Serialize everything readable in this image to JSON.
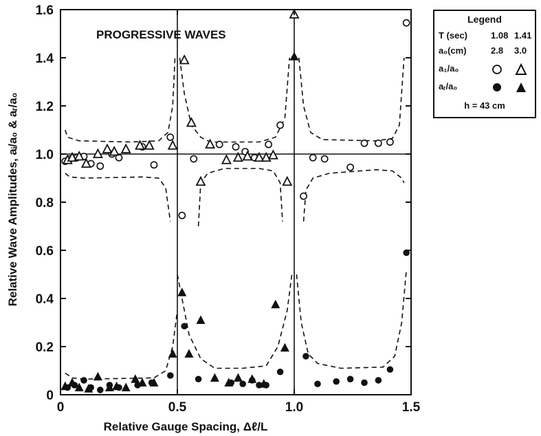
{
  "chart_data": {
    "type": "scatter",
    "annotation": "PROGRESSIVE WAVES",
    "xlabel": "Relative Gauge Spacing, Δℓ/L",
    "ylabel": "Relative Wave Amplitudes,  aᵢ/a₀  &  aᵣ/a₀",
    "xlim": [
      0,
      1.5
    ],
    "ylim": [
      0,
      1.6
    ],
    "x_ticks": [
      0,
      0.5,
      1.0,
      1.5
    ],
    "x_tick_labels": [
      "0",
      "0.5",
      "1.0",
      "1.5"
    ],
    "y_ticks": [
      0,
      0.2,
      0.4,
      0.6,
      0.8,
      1.0,
      1.2,
      1.4,
      1.6
    ],
    "y_tick_labels": [
      "0",
      "0.2",
      "0.4",
      "0.6",
      "0.8",
      "1.0",
      "1.2",
      "1.4",
      "1.6"
    ],
    "reference_lines": {
      "horizontal": [
        1.0
      ],
      "vertical": [
        0.5,
        1.0
      ]
    },
    "series": [
      {
        "name": "aI/a0, T=1.08 s",
        "marker": "open-circle",
        "points": [
          [
            0.02,
            0.97
          ],
          [
            0.04,
            0.98
          ],
          [
            0.07,
            0.985
          ],
          [
            0.1,
            0.99
          ],
          [
            0.13,
            0.96
          ],
          [
            0.17,
            0.95
          ],
          [
            0.22,
            1.0
          ],
          [
            0.25,
            0.985
          ],
          [
            0.35,
            1.03
          ],
          [
            0.4,
            0.955
          ],
          [
            0.47,
            1.07
          ],
          [
            0.52,
            0.745
          ],
          [
            0.57,
            0.98
          ],
          [
            0.68,
            1.04
          ],
          [
            0.75,
            1.03
          ],
          [
            0.79,
            1.01
          ],
          [
            0.83,
            0.985
          ],
          [
            0.89,
            1.04
          ],
          [
            0.94,
            1.12
          ],
          [
            1.04,
            0.825
          ],
          [
            1.08,
            0.985
          ],
          [
            1.13,
            0.98
          ],
          [
            1.24,
            0.945
          ],
          [
            1.3,
            1.045
          ],
          [
            1.36,
            1.045
          ],
          [
            1.41,
            1.05
          ],
          [
            1.48,
            1.545
          ]
        ]
      },
      {
        "name": "aI/a0, T=1.41 s",
        "marker": "open-triangle",
        "points": [
          [
            0.03,
            0.975
          ],
          [
            0.05,
            0.985
          ],
          [
            0.08,
            0.99
          ],
          [
            0.11,
            0.96
          ],
          [
            0.16,
            1.0
          ],
          [
            0.2,
            1.02
          ],
          [
            0.23,
            1.01
          ],
          [
            0.28,
            1.02
          ],
          [
            0.34,
            1.035
          ],
          [
            0.38,
            1.035
          ],
          [
            0.48,
            1.035
          ],
          [
            0.53,
            1.39
          ],
          [
            0.56,
            1.13
          ],
          [
            0.6,
            0.885
          ],
          [
            0.64,
            1.04
          ],
          [
            0.71,
            0.975
          ],
          [
            0.76,
            0.985
          ],
          [
            0.8,
            0.99
          ],
          [
            0.85,
            0.985
          ],
          [
            0.88,
            0.985
          ],
          [
            0.91,
            0.995
          ],
          [
            0.97,
            0.885
          ],
          [
            1.0,
            1.58
          ]
        ]
      },
      {
        "name": "aR/a0, T=1.08 s",
        "marker": "filled-circle",
        "points": [
          [
            0.03,
            0.03
          ],
          [
            0.06,
            0.04
          ],
          [
            0.1,
            0.06
          ],
          [
            0.13,
            0.03
          ],
          [
            0.17,
            0.02
          ],
          [
            0.21,
            0.04
          ],
          [
            0.25,
            0.03
          ],
          [
            0.33,
            0.04
          ],
          [
            0.39,
            0.05
          ],
          [
            0.47,
            0.08
          ],
          [
            0.53,
            0.285
          ],
          [
            0.59,
            0.065
          ],
          [
            0.73,
            0.05
          ],
          [
            0.78,
            0.045
          ],
          [
            0.82,
            0.06
          ],
          [
            0.85,
            0.04
          ],
          [
            0.88,
            0.04
          ],
          [
            0.94,
            0.095
          ],
          [
            1.05,
            0.16
          ],
          [
            1.1,
            0.045
          ],
          [
            1.18,
            0.055
          ],
          [
            1.24,
            0.065
          ],
          [
            1.3,
            0.05
          ],
          [
            1.36,
            0.06
          ],
          [
            1.41,
            0.105
          ],
          [
            1.48,
            0.59
          ]
        ]
      },
      {
        "name": "aR/a0, T=1.41 s",
        "marker": "filled-triangle",
        "points": [
          [
            0.02,
            0.035
          ],
          [
            0.05,
            0.05
          ],
          [
            0.08,
            0.03
          ],
          [
            0.12,
            0.025
          ],
          [
            0.16,
            0.075
          ],
          [
            0.21,
            0.03
          ],
          [
            0.24,
            0.035
          ],
          [
            0.28,
            0.03
          ],
          [
            0.32,
            0.065
          ],
          [
            0.35,
            0.05
          ],
          [
            0.4,
            0.05
          ],
          [
            0.48,
            0.17
          ],
          [
            0.52,
            0.425
          ],
          [
            0.55,
            0.17
          ],
          [
            0.6,
            0.31
          ],
          [
            0.66,
            0.07
          ],
          [
            0.72,
            0.05
          ],
          [
            0.76,
            0.07
          ],
          [
            0.82,
            0.065
          ],
          [
            0.87,
            0.045
          ],
          [
            0.92,
            0.375
          ],
          [
            0.96,
            0.195
          ],
          [
            1.0,
            1.405
          ]
        ]
      }
    ],
    "legend": {
      "title": "Legend",
      "period_label": "T (sec)",
      "period_values": [
        "1.08",
        "1.41"
      ],
      "amp_label": "a₀(cm)",
      "amp_values": [
        "2.8",
        "3.0"
      ],
      "incident_label": "a₁/a₀",
      "reflected_label": "aᵣ/a₀",
      "depth_label": "h = 43 cm",
      "placement": "outside-right"
    }
  }
}
